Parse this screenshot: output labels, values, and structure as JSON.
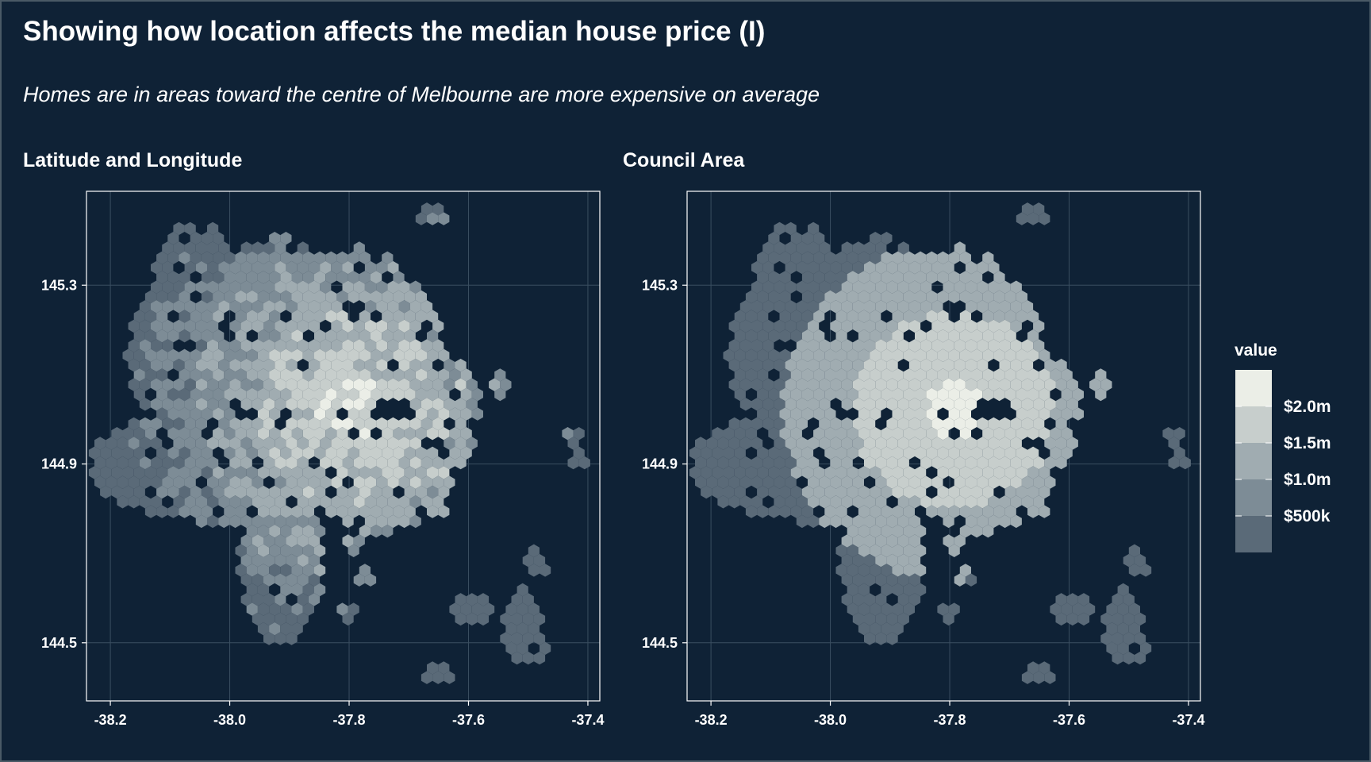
{
  "title": "Showing how location affects the median house price (I)",
  "subtitle": "Homes are in areas toward the centre of Melbourne are more expensive on average",
  "colors": {
    "background": "#0f2236",
    "axis": "#ffffff",
    "grid": "#3a4e60",
    "scale": [
      "#5a6a78",
      "#7d8c96",
      "#a0acb1",
      "#c7cecc",
      "#ebeee7"
    ]
  },
  "legend": {
    "title": "value",
    "labels": [
      "$2.0m",
      "$1.5m",
      "$1.0m",
      "$500k"
    ]
  },
  "chart_data": [
    {
      "type": "heatmap",
      "subtype": "hexbin",
      "title": "Latitude and Longitude",
      "xlim": [
        -38.24,
        -37.38
      ],
      "ylim": [
        144.37,
        145.51
      ],
      "x_ticks": [
        -38.2,
        -38.0,
        -37.8,
        -37.6,
        -37.4
      ],
      "x_tick_labels": [
        "-38.2",
        "-38.0",
        "-37.8",
        "-37.6",
        "-37.4"
      ],
      "y_ticks": [
        144.5,
        144.9,
        145.3
      ],
      "y_tick_labels": [
        "144.5",
        "144.9",
        "145.3"
      ],
      "grid": true,
      "fill_scale_millions": [
        0.25,
        2.25
      ],
      "fill_points": [
        {
          "x": -37.84,
          "y": 145.08,
          "value": 1.9
        },
        {
          "x": -37.81,
          "y": 145.06,
          "value": 2.1
        },
        {
          "x": -37.78,
          "y": 145.18,
          "value": 2.0
        },
        {
          "x": -37.76,
          "y": 145.25,
          "value": 1.9
        },
        {
          "x": -37.93,
          "y": 144.98,
          "value": 2.0
        },
        {
          "x": -37.87,
          "y": 145.02,
          "value": 1.6
        },
        {
          "x": -37.88,
          "y": 144.93,
          "value": 1.7
        },
        {
          "x": -37.66,
          "y": 144.63,
          "value": 0.45
        },
        {
          "x": -37.7,
          "y": 144.77,
          "value": 0.5
        }
      ]
    },
    {
      "type": "heatmap",
      "subtype": "hexbin",
      "title": "Council Area",
      "xlim": [
        -38.24,
        -37.38
      ],
      "ylim": [
        144.37,
        145.51
      ],
      "x_ticks": [
        -38.2,
        -38.0,
        -37.8,
        -37.6,
        -37.4
      ],
      "x_tick_labels": [
        "-38.2",
        "-38.0",
        "-37.8",
        "-37.6",
        "-37.4"
      ],
      "y_ticks": [
        144.5,
        144.9,
        145.3
      ],
      "y_tick_labels": [
        "144.5",
        "144.9",
        "145.3"
      ],
      "grid": true,
      "fill_scale_millions": [
        0.25,
        2.25
      ]
    }
  ]
}
